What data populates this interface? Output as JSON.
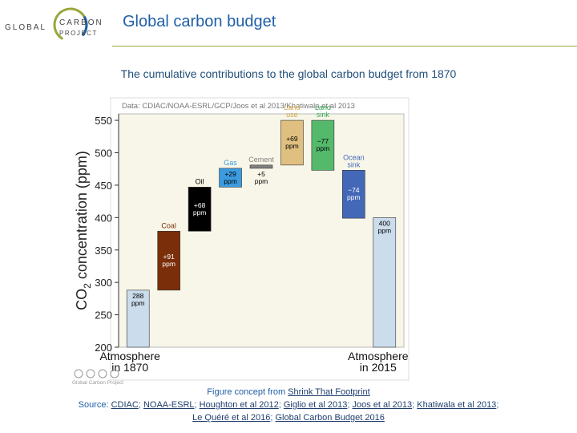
{
  "header": {
    "logo_text_left": "GLOBAL",
    "logo_text_right_1": "CARBON",
    "logo_text_right_2": "PROJECT",
    "title": "Global carbon budget",
    "subtitle": "The cumulative contributions to the global carbon budget from 1870"
  },
  "colors": {
    "accent": "#1f5fa8",
    "rule": "#9aa63a",
    "plot_bg": "#f7f6e8"
  },
  "chart_data": {
    "type": "waterfall",
    "source_label": "Data: CDIAC/NOAA-ESRL/GCP/Joos et al 2013/Khatiwala et al 2013",
    "ylabel": "CO2 concentration (ppm)",
    "ylim": [
      200,
      560
    ],
    "yticks": [
      200,
      250,
      300,
      350,
      400,
      450,
      500,
      550
    ],
    "bars": [
      {
        "name": "atm-1870",
        "label_top": "",
        "value_text": "288\nppm",
        "start": 200,
        "end": 288,
        "color": "#cbdcec",
        "text_color": "#000000"
      },
      {
        "name": "coal",
        "label_top": "Coal",
        "value_text": "+91\nppm",
        "start": 288,
        "end": 379,
        "color": "#7a2e0a",
        "text_color": "#ffffff"
      },
      {
        "name": "oil",
        "label_top": "Oil",
        "value_text": "+68\nppm",
        "start": 379,
        "end": 447,
        "color": "#000000",
        "text_color": "#ffffff"
      },
      {
        "name": "gas",
        "label_top": "Gas",
        "value_text": "+29\nppm",
        "start": 447,
        "end": 476,
        "color": "#3d9ce0",
        "text_color": "#000000"
      },
      {
        "name": "cement",
        "label_top": "Cement",
        "value_text": "+5\nppm",
        "start": 476,
        "end": 481,
        "color": "#808080",
        "text_color": "#000000"
      },
      {
        "name": "land-use",
        "label_top": "Land\nuse",
        "value_text": "+69\nppm",
        "start": 481,
        "end": 550,
        "color": "#e0c080",
        "text_color": "#000000"
      },
      {
        "name": "land-sink",
        "label_top": "Land\nsink",
        "value_text": "−77\nppm",
        "start": 550,
        "end": 473,
        "color": "#55b96c",
        "text_color": "#000000"
      },
      {
        "name": "ocean-sink",
        "label_top": "Ocean\nsink",
        "value_text": "−74\nppm",
        "start": 473,
        "end": 399,
        "color": "#4468b8",
        "text_color": "#ffffff"
      },
      {
        "name": "atm-2015",
        "label_top": "",
        "value_text": "400\nppm",
        "start": 200,
        "end": 400,
        "color": "#cbdcec",
        "text_color": "#000000"
      }
    ],
    "x_left_label": "Atmosphere\nin 1870",
    "x_right_label": "Atmosphere\nin 2015",
    "top_label_colors": {
      "Coal": "#7a2e0a",
      "Oil": "#000000",
      "Gas": "#3d9ce0",
      "Cement": "#808080",
      "Land\nuse": "#d4a84a",
      "Land\nsink": "#3aa857",
      "Ocean\nsink": "#4468b8"
    },
    "license_text": "Global Carbon Project"
  },
  "credits": {
    "concept_prefix": "Figure concept from ",
    "concept_link": "Shrink That Footprint",
    "source_prefix": "Source: ",
    "sources": [
      "CDIAC",
      "NOAA-ESRL",
      "Houghton et al 2012",
      "Giglio et al 2013",
      "Joos et al 2013",
      "Khatiwala et al 2013"
    ],
    "sources_line2": [
      "Le Quéré et al 2016",
      "Global Carbon Budget 2016"
    ]
  }
}
